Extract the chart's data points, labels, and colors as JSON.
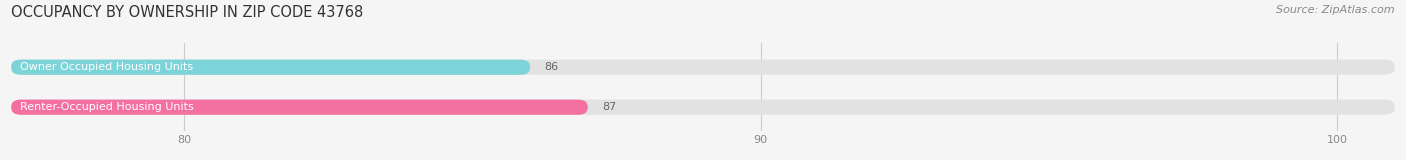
{
  "title": "OCCUPANCY BY OWNERSHIP IN ZIP CODE 43768",
  "source": "Source: ZipAtlas.com",
  "categories": [
    "Owner Occupied Housing Units",
    "Renter-Occupied Housing Units"
  ],
  "values": [
    86,
    87
  ],
  "colors": [
    "#7dd4d8",
    "#f470a0"
  ],
  "xlim": [
    77,
    101
  ],
  "xticks": [
    80,
    90,
    100
  ],
  "bar_height": 0.38,
  "background_color": "#f5f5f5",
  "bar_bg_color": "#e2e2e2",
  "title_fontsize": 10.5,
  "source_fontsize": 8,
  "label_fontsize": 8,
  "value_fontsize": 8,
  "label_color": "#333333",
  "value_color": "#666666",
  "grid_color": "#cccccc"
}
